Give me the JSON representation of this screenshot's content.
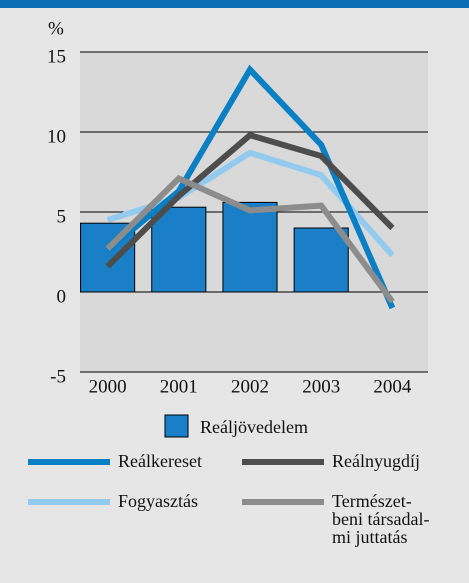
{
  "chart_data": {
    "type": "bar_line",
    "ylabel": "%",
    "categories": [
      "2000",
      "2001",
      "2002",
      "2003",
      "2004"
    ],
    "bar_series": {
      "name": "Reáljövedelem",
      "color": "#1a7fc7",
      "values": [
        4.3,
        5.3,
        5.6,
        4.0,
        null
      ]
    },
    "series": [
      {
        "name": "Reálkereset",
        "color": "#0b7fc4",
        "values": [
          2.6,
          6.3,
          13.9,
          9.2,
          -1.0
        ]
      },
      {
        "name": "Reálnyugdíj",
        "color": "#4d4d4d",
        "values": [
          1.6,
          6.0,
          9.8,
          8.5,
          4.0
        ]
      },
      {
        "name": "Fogyasztás",
        "color": "#93cbef",
        "values": [
          4.5,
          5.9,
          8.7,
          7.3,
          2.3
        ]
      },
      {
        "name": "Természet-\nbeni társadal-\nmi juttatás",
        "color": "#8c8c8c",
        "values": [
          2.7,
          7.1,
          5.1,
          5.4,
          -0.6
        ]
      }
    ],
    "ylim": [
      -5,
      15
    ],
    "yticks": [
      -5,
      0,
      5,
      10,
      15
    ],
    "grid": true
  }
}
